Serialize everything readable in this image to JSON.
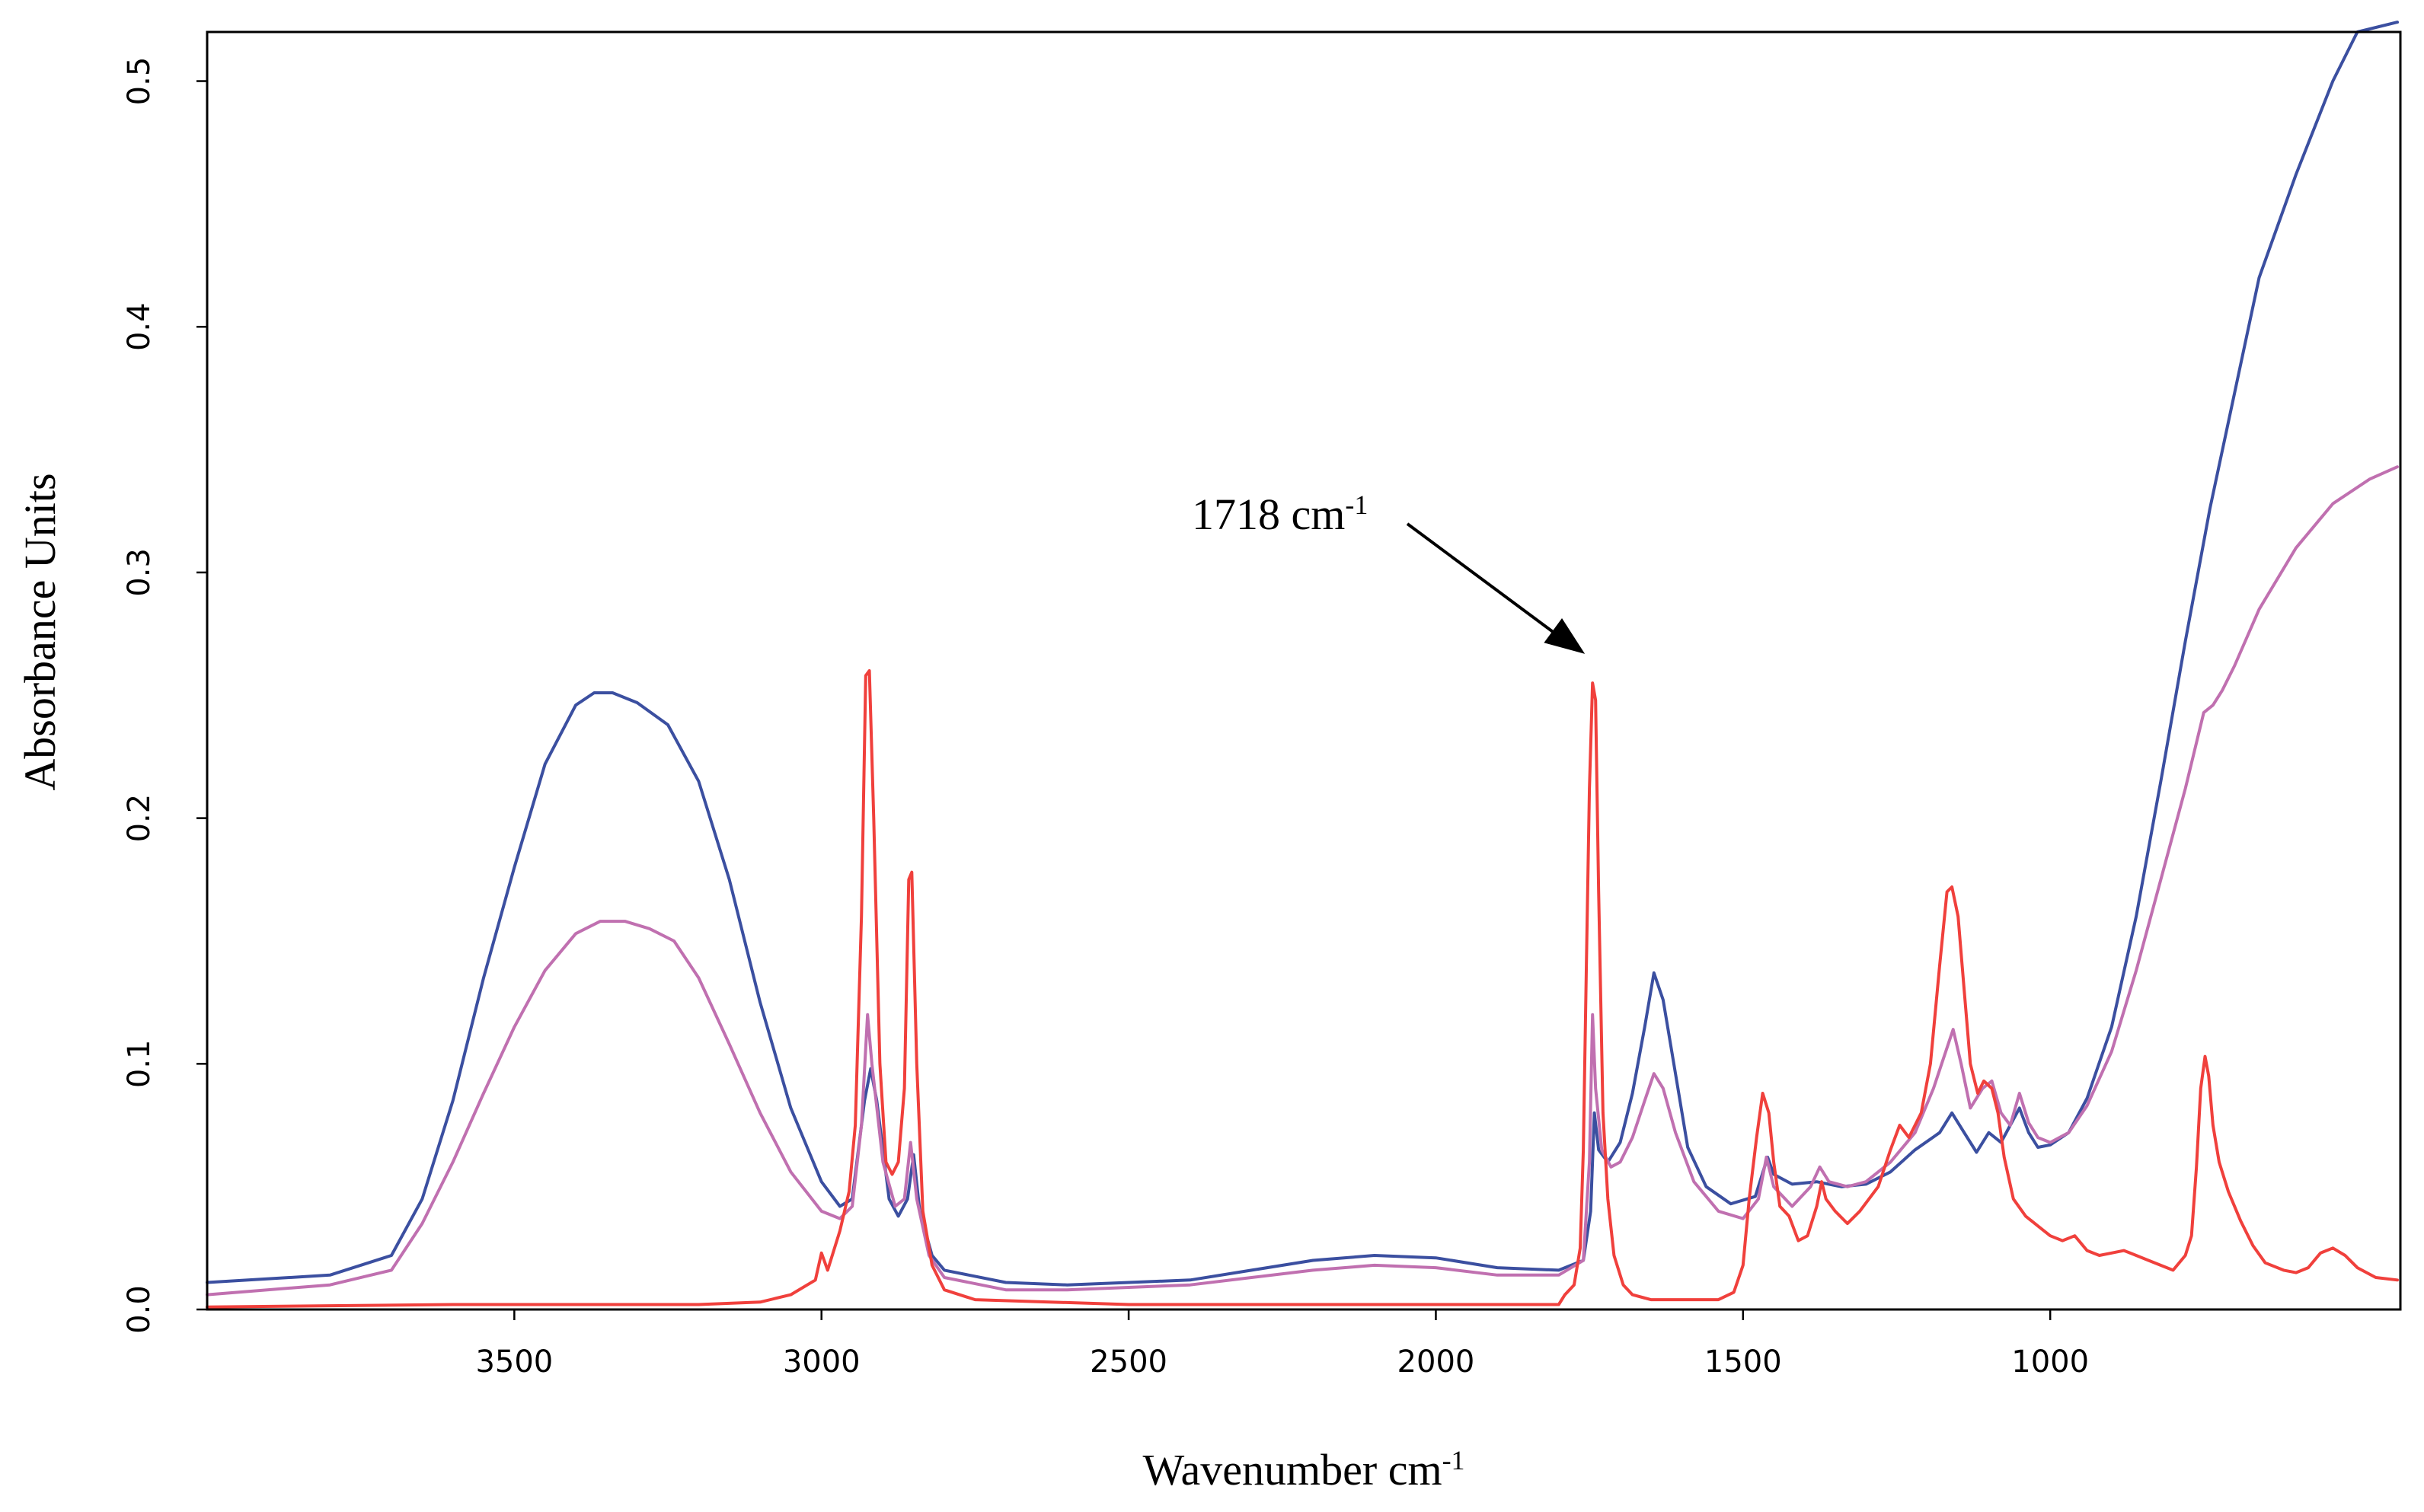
{
  "chart_data": {
    "type": "line",
    "title": "",
    "xlabel": "Wavenumber cm",
    "xlabel_sup": "-1",
    "ylabel": "Absorbance Units",
    "xlim": [
      4000,
      430
    ],
    "ylim": [
      0,
      0.52
    ],
    "x_ticks": [
      3500,
      3000,
      2500,
      2000,
      1500,
      1000
    ],
    "x_tick_labels": [
      "3500",
      "3000",
      "2500",
      "2000",
      "1500",
      "1000"
    ],
    "y_ticks": [
      0.0,
      0.1,
      0.2,
      0.3,
      0.4,
      0.5
    ],
    "y_tick_labels": [
      "0.0",
      "0.1",
      "0.2",
      "0.3",
      "0.4",
      "0.5"
    ],
    "grid": false,
    "annotation": {
      "text": "1718 cm",
      "sup": "-1",
      "x": 1745,
      "y": 0.265
    },
    "series": [
      {
        "name": "blue",
        "color": "#3b4fa0",
        "points": [
          [
            4000,
            0.011
          ],
          [
            3800,
            0.014
          ],
          [
            3700,
            0.022
          ],
          [
            3650,
            0.045
          ],
          [
            3600,
            0.085
          ],
          [
            3550,
            0.135
          ],
          [
            3500,
            0.18
          ],
          [
            3450,
            0.222
          ],
          [
            3400,
            0.246
          ],
          [
            3370,
            0.251
          ],
          [
            3340,
            0.251
          ],
          [
            3300,
            0.247
          ],
          [
            3250,
            0.238
          ],
          [
            3200,
            0.215
          ],
          [
            3150,
            0.175
          ],
          [
            3100,
            0.125
          ],
          [
            3050,
            0.082
          ],
          [
            3000,
            0.052
          ],
          [
            2970,
            0.042
          ],
          [
            2950,
            0.045
          ],
          [
            2930,
            0.085
          ],
          [
            2920,
            0.098
          ],
          [
            2910,
            0.085
          ],
          [
            2890,
            0.045
          ],
          [
            2875,
            0.038
          ],
          [
            2860,
            0.045
          ],
          [
            2850,
            0.063
          ],
          [
            2840,
            0.04
          ],
          [
            2820,
            0.022
          ],
          [
            2800,
            0.016
          ],
          [
            2700,
            0.011
          ],
          [
            2600,
            0.01
          ],
          [
            2500,
            0.011
          ],
          [
            2400,
            0.012
          ],
          [
            2300,
            0.016
          ],
          [
            2200,
            0.02
          ],
          [
            2100,
            0.022
          ],
          [
            2000,
            0.021
          ],
          [
            1900,
            0.017
          ],
          [
            1800,
            0.016
          ],
          [
            1760,
            0.02
          ],
          [
            1748,
            0.04
          ],
          [
            1742,
            0.08
          ],
          [
            1735,
            0.065
          ],
          [
            1720,
            0.06
          ],
          [
            1700,
            0.068
          ],
          [
            1680,
            0.088
          ],
          [
            1660,
            0.115
          ],
          [
            1645,
            0.137
          ],
          [
            1630,
            0.126
          ],
          [
            1610,
            0.096
          ],
          [
            1590,
            0.066
          ],
          [
            1560,
            0.05
          ],
          [
            1520,
            0.043
          ],
          [
            1480,
            0.046
          ],
          [
            1460,
            0.062
          ],
          [
            1450,
            0.055
          ],
          [
            1420,
            0.051
          ],
          [
            1380,
            0.052
          ],
          [
            1340,
            0.05
          ],
          [
            1300,
            0.051
          ],
          [
            1260,
            0.056
          ],
          [
            1220,
            0.065
          ],
          [
            1180,
            0.072
          ],
          [
            1160,
            0.08
          ],
          [
            1140,
            0.072
          ],
          [
            1120,
            0.064
          ],
          [
            1100,
            0.072
          ],
          [
            1080,
            0.068
          ],
          [
            1065,
            0.075
          ],
          [
            1050,
            0.082
          ],
          [
            1035,
            0.072
          ],
          [
            1020,
            0.066
          ],
          [
            1000,
            0.067
          ],
          [
            970,
            0.072
          ],
          [
            940,
            0.086
          ],
          [
            900,
            0.115
          ],
          [
            860,
            0.16
          ],
          [
            820,
            0.215
          ],
          [
            780,
            0.272
          ],
          [
            740,
            0.326
          ],
          [
            700,
            0.373
          ],
          [
            660,
            0.42
          ],
          [
            600,
            0.462
          ],
          [
            540,
            0.5
          ],
          [
            500,
            0.52
          ],
          [
            435,
            0.524
          ]
        ]
      },
      {
        "name": "pink",
        "color": "#c070b0",
        "points": [
          [
            4000,
            0.006
          ],
          [
            3800,
            0.01
          ],
          [
            3700,
            0.016
          ],
          [
            3650,
            0.035
          ],
          [
            3600,
            0.06
          ],
          [
            3550,
            0.088
          ],
          [
            3500,
            0.115
          ],
          [
            3450,
            0.138
          ],
          [
            3400,
            0.153
          ],
          [
            3360,
            0.158
          ],
          [
            3320,
            0.158
          ],
          [
            3280,
            0.155
          ],
          [
            3240,
            0.15
          ],
          [
            3200,
            0.135
          ],
          [
            3150,
            0.108
          ],
          [
            3100,
            0.08
          ],
          [
            3050,
            0.056
          ],
          [
            3000,
            0.04
          ],
          [
            2970,
            0.037
          ],
          [
            2950,
            0.042
          ],
          [
            2935,
            0.075
          ],
          [
            2925,
            0.12
          ],
          [
            2918,
            0.1
          ],
          [
            2900,
            0.06
          ],
          [
            2880,
            0.042
          ],
          [
            2865,
            0.045
          ],
          [
            2855,
            0.068
          ],
          [
            2845,
            0.045
          ],
          [
            2825,
            0.022
          ],
          [
            2800,
            0.013
          ],
          [
            2700,
            0.008
          ],
          [
            2600,
            0.008
          ],
          [
            2500,
            0.009
          ],
          [
            2400,
            0.01
          ],
          [
            2300,
            0.013
          ],
          [
            2200,
            0.016
          ],
          [
            2100,
            0.018
          ],
          [
            2000,
            0.017
          ],
          [
            1900,
            0.014
          ],
          [
            1800,
            0.014
          ],
          [
            1760,
            0.02
          ],
          [
            1750,
            0.06
          ],
          [
            1745,
            0.12
          ],
          [
            1740,
            0.09
          ],
          [
            1730,
            0.065
          ],
          [
            1715,
            0.058
          ],
          [
            1700,
            0.06
          ],
          [
            1680,
            0.07
          ],
          [
            1660,
            0.085
          ],
          [
            1645,
            0.096
          ],
          [
            1630,
            0.09
          ],
          [
            1610,
            0.072
          ],
          [
            1580,
            0.052
          ],
          [
            1540,
            0.04
          ],
          [
            1500,
            0.037
          ],
          [
            1475,
            0.045
          ],
          [
            1462,
            0.062
          ],
          [
            1450,
            0.05
          ],
          [
            1420,
            0.042
          ],
          [
            1390,
            0.05
          ],
          [
            1375,
            0.058
          ],
          [
            1360,
            0.052
          ],
          [
            1330,
            0.05
          ],
          [
            1300,
            0.052
          ],
          [
            1260,
            0.06
          ],
          [
            1220,
            0.072
          ],
          [
            1190,
            0.09
          ],
          [
            1170,
            0.105
          ],
          [
            1158,
            0.114
          ],
          [
            1145,
            0.1
          ],
          [
            1130,
            0.082
          ],
          [
            1110,
            0.09
          ],
          [
            1095,
            0.093
          ],
          [
            1080,
            0.08
          ],
          [
            1065,
            0.075
          ],
          [
            1050,
            0.088
          ],
          [
            1035,
            0.076
          ],
          [
            1020,
            0.07
          ],
          [
            1000,
            0.068
          ],
          [
            970,
            0.072
          ],
          [
            940,
            0.083
          ],
          [
            900,
            0.105
          ],
          [
            860,
            0.138
          ],
          [
            820,
            0.175
          ],
          [
            780,
            0.212
          ],
          [
            750,
            0.243
          ],
          [
            735,
            0.246
          ],
          [
            720,
            0.252
          ],
          [
            700,
            0.262
          ],
          [
            660,
            0.285
          ],
          [
            600,
            0.31
          ],
          [
            540,
            0.328
          ],
          [
            480,
            0.338
          ],
          [
            435,
            0.343
          ]
        ]
      },
      {
        "name": "red",
        "color": "#f0403c",
        "points": [
          [
            4000,
            0.001
          ],
          [
            3600,
            0.002
          ],
          [
            3200,
            0.002
          ],
          [
            3100,
            0.003
          ],
          [
            3050,
            0.006
          ],
          [
            3010,
            0.012
          ],
          [
            3000,
            0.023
          ],
          [
            2990,
            0.016
          ],
          [
            2970,
            0.032
          ],
          [
            2955,
            0.048
          ],
          [
            2945,
            0.075
          ],
          [
            2935,
            0.16
          ],
          [
            2928,
            0.258
          ],
          [
            2922,
            0.26
          ],
          [
            2915,
            0.2
          ],
          [
            2905,
            0.1
          ],
          [
            2895,
            0.06
          ],
          [
            2885,
            0.055
          ],
          [
            2875,
            0.06
          ],
          [
            2865,
            0.09
          ],
          [
            2858,
            0.175
          ],
          [
            2853,
            0.178
          ],
          [
            2845,
            0.1
          ],
          [
            2835,
            0.04
          ],
          [
            2820,
            0.018
          ],
          [
            2800,
            0.008
          ],
          [
            2750,
            0.004
          ],
          [
            2500,
            0.002
          ],
          [
            2000,
            0.002
          ],
          [
            1800,
            0.002
          ],
          [
            1790,
            0.006
          ],
          [
            1775,
            0.01
          ],
          [
            1765,
            0.025
          ],
          [
            1760,
            0.065
          ],
          [
            1755,
            0.14
          ],
          [
            1750,
            0.212
          ],
          [
            1745,
            0.255
          ],
          [
            1740,
            0.248
          ],
          [
            1735,
            0.17
          ],
          [
            1728,
            0.08
          ],
          [
            1720,
            0.045
          ],
          [
            1710,
            0.022
          ],
          [
            1695,
            0.01
          ],
          [
            1680,
            0.006
          ],
          [
            1650,
            0.004
          ],
          [
            1600,
            0.004
          ],
          [
            1540,
            0.004
          ],
          [
            1515,
            0.007
          ],
          [
            1500,
            0.018
          ],
          [
            1490,
            0.045
          ],
          [
            1478,
            0.07
          ],
          [
            1468,
            0.088
          ],
          [
            1458,
            0.08
          ],
          [
            1450,
            0.06
          ],
          [
            1440,
            0.042
          ],
          [
            1425,
            0.038
          ],
          [
            1410,
            0.028
          ],
          [
            1395,
            0.03
          ],
          [
            1380,
            0.042
          ],
          [
            1372,
            0.052
          ],
          [
            1365,
            0.045
          ],
          [
            1350,
            0.04
          ],
          [
            1330,
            0.035
          ],
          [
            1310,
            0.04
          ],
          [
            1280,
            0.05
          ],
          [
            1260,
            0.065
          ],
          [
            1245,
            0.075
          ],
          [
            1230,
            0.07
          ],
          [
            1210,
            0.08
          ],
          [
            1195,
            0.1
          ],
          [
            1180,
            0.14
          ],
          [
            1168,
            0.17
          ],
          [
            1160,
            0.172
          ],
          [
            1150,
            0.16
          ],
          [
            1140,
            0.13
          ],
          [
            1130,
            0.1
          ],
          [
            1118,
            0.088
          ],
          [
            1108,
            0.093
          ],
          [
            1095,
            0.09
          ],
          [
            1085,
            0.08
          ],
          [
            1075,
            0.062
          ],
          [
            1060,
            0.045
          ],
          [
            1040,
            0.038
          ],
          [
            1020,
            0.034
          ],
          [
            1000,
            0.03
          ],
          [
            980,
            0.028
          ],
          [
            960,
            0.03
          ],
          [
            940,
            0.024
          ],
          [
            920,
            0.022
          ],
          [
            900,
            0.023
          ],
          [
            880,
            0.024
          ],
          [
            860,
            0.022
          ],
          [
            840,
            0.02
          ],
          [
            800,
            0.016
          ],
          [
            780,
            0.022
          ],
          [
            770,
            0.03
          ],
          [
            762,
            0.058
          ],
          [
            755,
            0.09
          ],
          [
            748,
            0.103
          ],
          [
            742,
            0.095
          ],
          [
            735,
            0.075
          ],
          [
            725,
            0.06
          ],
          [
            710,
            0.048
          ],
          [
            690,
            0.036
          ],
          [
            670,
            0.026
          ],
          [
            650,
            0.019
          ],
          [
            620,
            0.016
          ],
          [
            600,
            0.015
          ],
          [
            580,
            0.017
          ],
          [
            560,
            0.023
          ],
          [
            540,
            0.025
          ],
          [
            520,
            0.022
          ],
          [
            500,
            0.017
          ],
          [
            470,
            0.013
          ],
          [
            435,
            0.012
          ]
        ]
      }
    ]
  }
}
